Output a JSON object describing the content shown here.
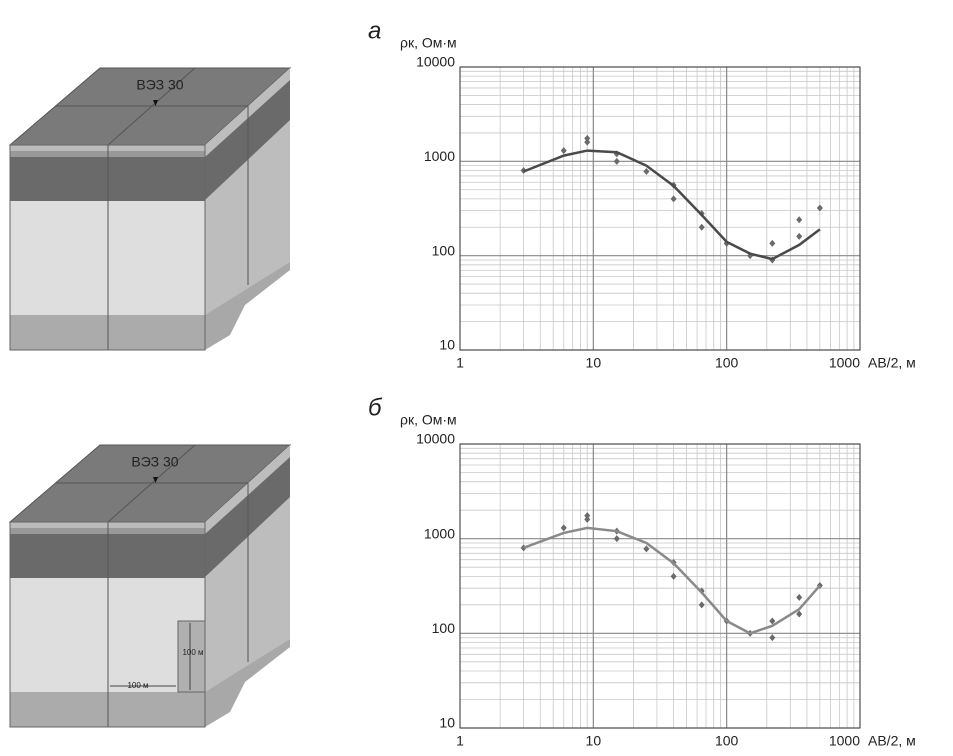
{
  "chart_data": [
    {
      "type": "line",
      "title": "а",
      "ylabel": "ρк, Ом·м",
      "xlabel": "AB/2, м",
      "xlim": [
        1,
        1000
      ],
      "ylim": [
        10,
        10000
      ],
      "xticks": [
        1,
        10,
        100,
        1000
      ],
      "yticks": [
        10,
        100,
        1000,
        10000
      ],
      "log_x": true,
      "log_y": true,
      "grid": true,
      "series": [
        {
          "marker": "diamond",
          "color": "#6a6a6a",
          "x": [
            3,
            6,
            9,
            9,
            15,
            15,
            25,
            40,
            40,
            65,
            65,
            100,
            150,
            220,
            220,
            350,
            350,
            500
          ],
          "values": [
            800,
            1300,
            1750,
            1600,
            1200,
            1000,
            780,
            560,
            400,
            280,
            200,
            135,
            100,
            135,
            90,
            240,
            160,
            320
          ]
        },
        {
          "marker": "line",
          "color": "#4a4a4a",
          "x": [
            3,
            6,
            9,
            15,
            25,
            40,
            65,
            100,
            150,
            220,
            350,
            500
          ],
          "values": [
            780,
            1150,
            1300,
            1250,
            900,
            550,
            270,
            140,
            105,
            92,
            130,
            190
          ]
        }
      ]
    },
    {
      "type": "line",
      "title": "б",
      "ylabel": "ρк, Ом·м",
      "xlabel": "AB/2, м",
      "xlim": [
        1,
        1000
      ],
      "ylim": [
        10,
        10000
      ],
      "xticks": [
        1,
        10,
        100,
        1000
      ],
      "yticks": [
        10,
        100,
        1000,
        10000
      ],
      "log_x": true,
      "log_y": true,
      "grid": true,
      "series": [
        {
          "marker": "diamond",
          "color": "#6a6a6a",
          "x": [
            3,
            6,
            9,
            9,
            15,
            15,
            25,
            40,
            40,
            65,
            65,
            100,
            150,
            220,
            220,
            350,
            350,
            500
          ],
          "values": [
            800,
            1300,
            1750,
            1600,
            1200,
            1000,
            780,
            560,
            400,
            280,
            200,
            135,
            100,
            135,
            90,
            240,
            160,
            320
          ]
        },
        {
          "marker": "line",
          "color": "#8a8a8a",
          "x": [
            3,
            6,
            9,
            15,
            25,
            40,
            65,
            100,
            150,
            220,
            350,
            500
          ],
          "values": [
            800,
            1150,
            1300,
            1200,
            900,
            550,
            270,
            135,
            100,
            120,
            180,
            320
          ]
        }
      ]
    }
  ],
  "diagrams": [
    {
      "label": "ВЭЗ 30"
    },
    {
      "label": "ВЭЗ 30",
      "height_label": "100 м",
      "width_label": "100 м"
    }
  ]
}
